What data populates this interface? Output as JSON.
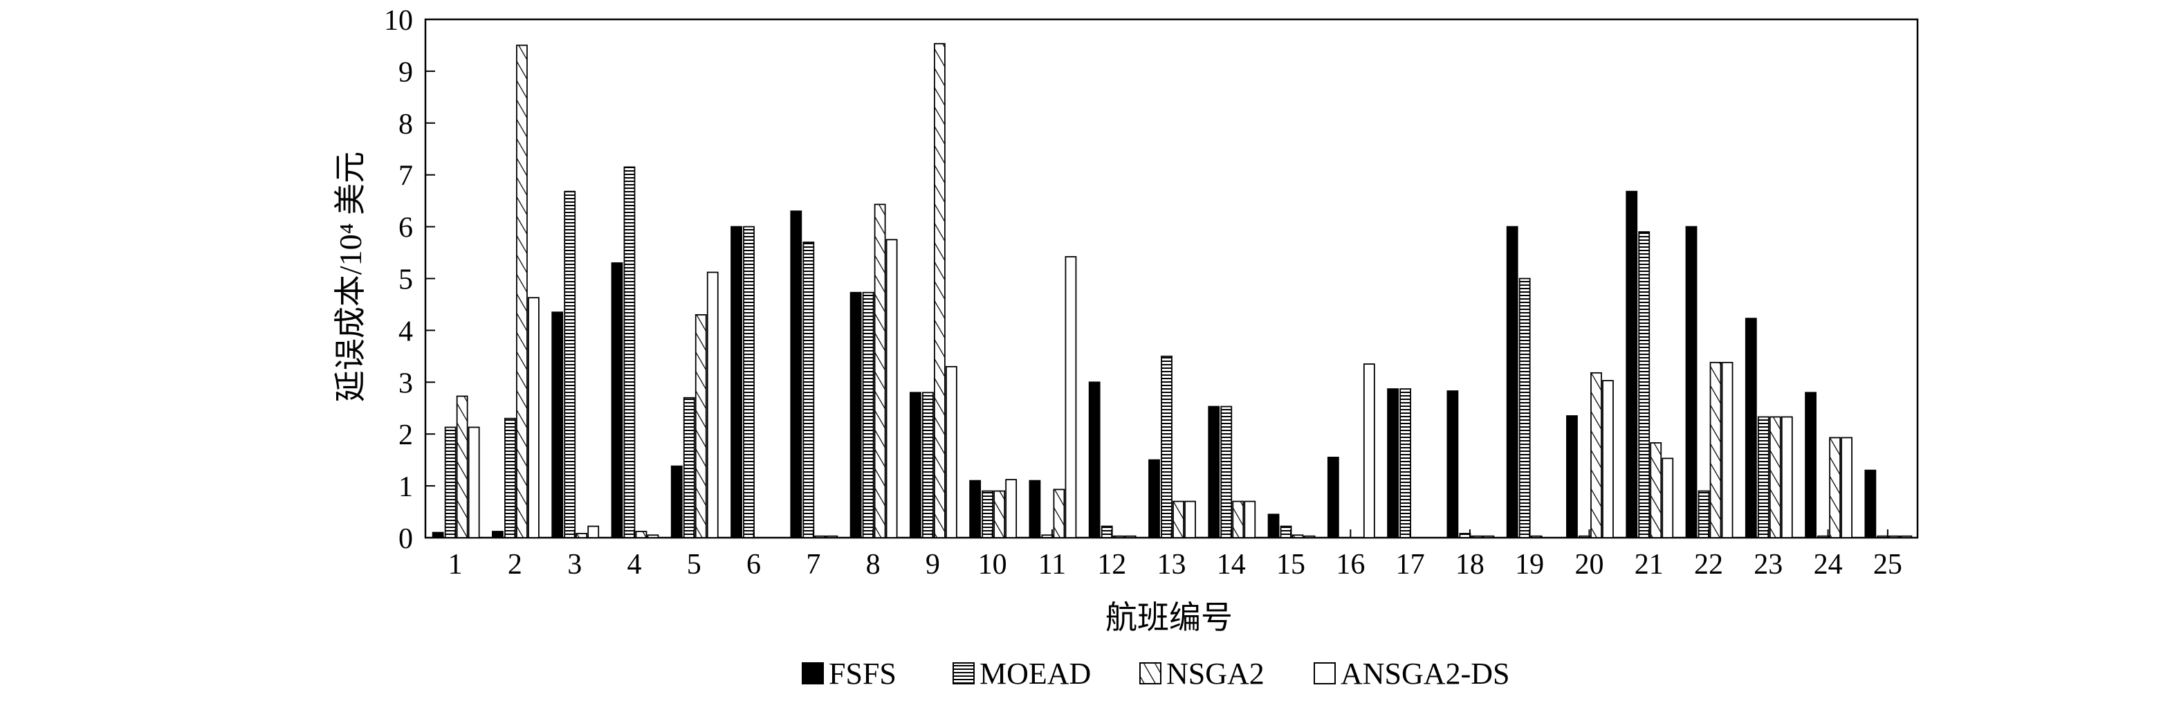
{
  "chart_data": {
    "type": "bar",
    "title": "",
    "xlabel": "航班编号",
    "ylabel": "延误成本/10⁴ 美元",
    "ylim": [
      0,
      10
    ],
    "yticks": [
      "0",
      "1",
      "2",
      "3",
      "4",
      "5",
      "6",
      "7",
      "8",
      "9",
      "10"
    ],
    "categories": [
      "1",
      "2",
      "3",
      "4",
      "5",
      "6",
      "7",
      "8",
      "9",
      "10",
      "11",
      "12",
      "13",
      "14",
      "15",
      "16",
      "17",
      "18",
      "19",
      "20",
      "21",
      "22",
      "23",
      "24",
      "25"
    ],
    "legend_position": "bottom-center",
    "grid": false,
    "series": [
      {
        "name": "FSFS",
        "pattern": "solid",
        "values": [
          0.1,
          0.12,
          4.35,
          5.3,
          1.38,
          6.0,
          6.3,
          4.73,
          2.8,
          1.1,
          1.1,
          3.0,
          1.5,
          2.53,
          0.45,
          1.55,
          2.87,
          2.83,
          6.0,
          2.35,
          6.68,
          6.0,
          4.23,
          2.8,
          1.3
        ]
      },
      {
        "name": "MOEAD",
        "pattern": "horizontal",
        "values": [
          2.13,
          2.3,
          6.68,
          7.15,
          2.7,
          6.0,
          5.7,
          4.73,
          2.8,
          0.9,
          0.05,
          0.22,
          3.5,
          2.53,
          0.22,
          0,
          2.87,
          0.08,
          5.0,
          0.03,
          5.9,
          0.9,
          2.33,
          0.03,
          0.03
        ]
      },
      {
        "name": "NSGA2",
        "pattern": "diagonal",
        "values": [
          2.73,
          9.5,
          0.08,
          0.12,
          4.3,
          0,
          0.03,
          6.43,
          9.53,
          0.9,
          0.93,
          0.03,
          0.7,
          0.7,
          0.05,
          0,
          0,
          0.03,
          0.03,
          3.18,
          1.83,
          3.38,
          2.33,
          1.93,
          0.03
        ]
      },
      {
        "name": "ANSGA2-DS",
        "pattern": "blank",
        "values": [
          2.13,
          4.63,
          0.22,
          0.05,
          5.12,
          0,
          0.03,
          5.75,
          3.3,
          1.12,
          5.42,
          0.03,
          0.7,
          0.7,
          0.03,
          3.35,
          0,
          0.03,
          0,
          3.03,
          1.53,
          3.38,
          2.33,
          1.93,
          0.03
        ]
      }
    ]
  },
  "colors": {
    "stroke": "#000000",
    "background": "#ffffff"
  }
}
